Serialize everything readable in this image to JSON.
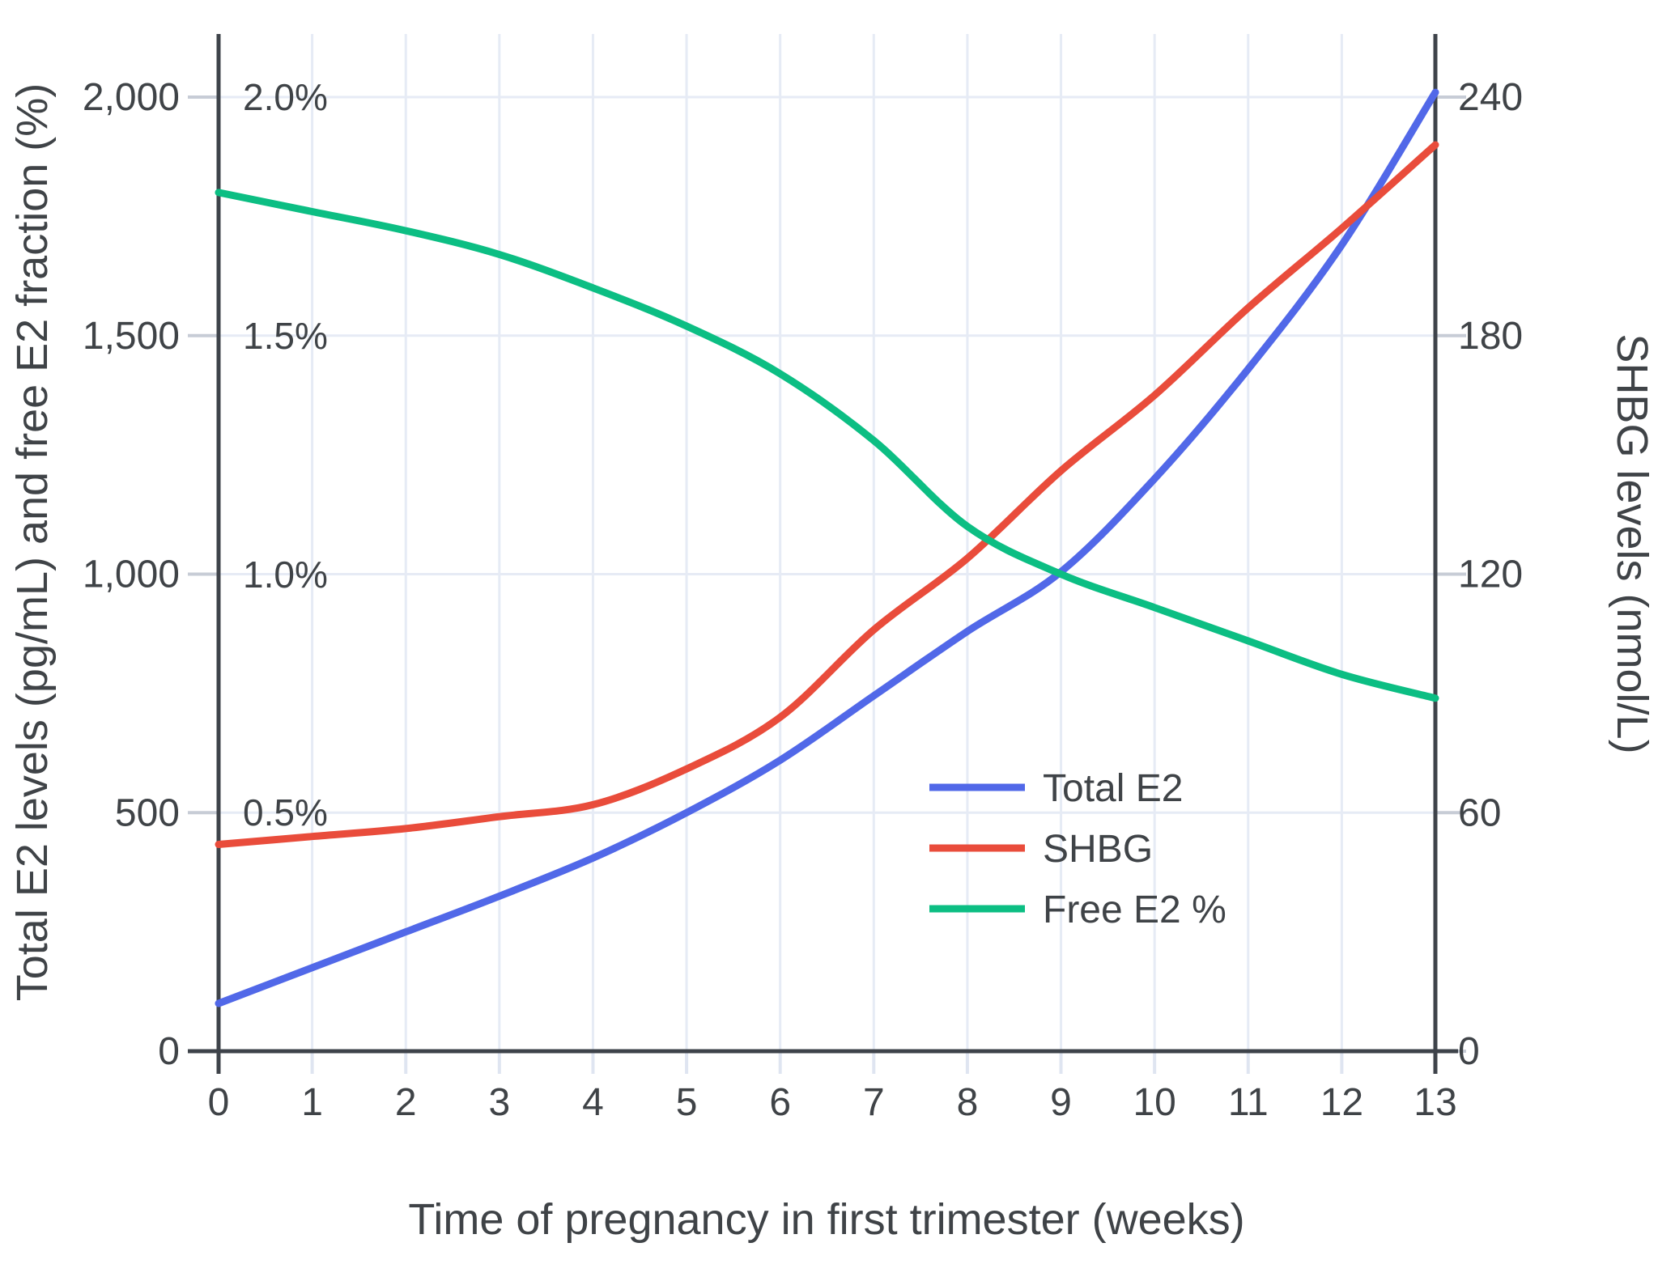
{
  "chart_data": {
    "type": "line",
    "xlabel": "Time of pregnancy in first trimester (weeks)",
    "ylabel_left": "Total E2 levels (pg/mL) and free E2 fraction (%)",
    "ylabel_right": "SHBG levels (nmol/L)",
    "x": [
      0,
      1,
      2,
      3,
      4,
      5,
      6,
      7,
      8,
      9,
      10,
      11,
      12,
      13
    ],
    "x_tick_labels": [
      "0",
      "1",
      "2",
      "3",
      "4",
      "5",
      "6",
      "7",
      "8",
      "9",
      "10",
      "11",
      "12",
      "13"
    ],
    "left_axis": {
      "range": [
        0,
        2130
      ],
      "ticks": [
        0,
        500,
        1000,
        1500,
        2000
      ],
      "tick_labels": [
        "0",
        "500",
        "1,000",
        "1,500",
        "2,000"
      ],
      "pct_labels": [
        "0.5%",
        "1.0%",
        "1.5%",
        "2.0%"
      ]
    },
    "right_axis": {
      "range": [
        0,
        255
      ],
      "ticks": [
        0,
        60,
        120,
        180,
        240
      ],
      "tick_labels": [
        "0",
        "60",
        "120",
        "180",
        "240"
      ]
    },
    "grid": true,
    "legend_position": "inside-lower-right",
    "series": [
      {
        "name": "Total E2",
        "axis": "left",
        "units": "pg/mL",
        "color": "#5168E8",
        "values": [
          100,
          175,
          250,
          325,
          405,
          500,
          610,
          745,
          880,
          1005,
          1200,
          1430,
          1690,
          2010
        ]
      },
      {
        "name": "SHBG",
        "axis": "right",
        "units": "nmol/L",
        "color": "#E94C3B",
        "values": [
          52,
          54,
          56,
          59,
          62,
          71,
          84,
          106,
          124,
          146,
          165,
          187,
          207,
          228
        ]
      },
      {
        "name": "Free E2 %",
        "axis": "left_pct",
        "units": "%",
        "color": "#0CBE83",
        "values": [
          1.8,
          1.76,
          1.72,
          1.67,
          1.6,
          1.52,
          1.42,
          1.28,
          1.1,
          1.0,
          0.93,
          0.86,
          0.79,
          0.74
        ]
      }
    ],
    "colors": {
      "axis_line": "#3E434A",
      "grid_line": "#E6EBF5",
      "tick_gray": "#C7CCD6",
      "tick_light": "#DFE5F1",
      "text": "#3F4347"
    }
  }
}
